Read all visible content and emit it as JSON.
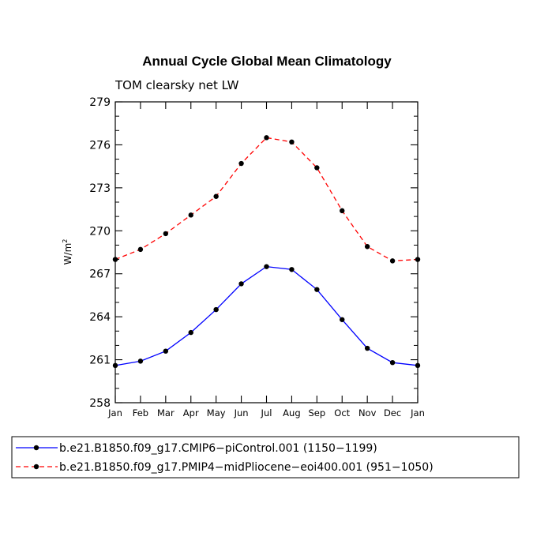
{
  "chart_data": {
    "type": "line",
    "title": "Annual Cycle Global Mean Climatology",
    "subtitle": "TOM clearsky net LW",
    "xlabel": "",
    "ylabel": "W/m",
    "ylabel_superscript": "2",
    "categories": [
      "Jan",
      "Feb",
      "Mar",
      "Apr",
      "May",
      "Jun",
      "Jul",
      "Aug",
      "Sep",
      "Oct",
      "Nov",
      "Dec",
      "Jan"
    ],
    "yticks": [
      258,
      261,
      264,
      267,
      270,
      273,
      276,
      279
    ],
    "ylim": [
      258,
      279
    ],
    "series": [
      {
        "name": "b.e21.B1850.f09_g17.CMIP6−piControl.001 (1150−1199)",
        "color": "#0000ff",
        "dash": "solid",
        "values": [
          260.6,
          260.9,
          261.6,
          262.9,
          264.5,
          266.3,
          267.5,
          267.3,
          265.9,
          263.8,
          261.8,
          260.8,
          260.6
        ]
      },
      {
        "name": "b.e21.B1850.f09_g17.PMIP4−midPliocene−eoi400.001 (951−1050)",
        "color": "#ff0000",
        "dash": "dashed",
        "values": [
          268.0,
          268.7,
          269.8,
          271.1,
          272.4,
          274.7,
          276.5,
          276.2,
          274.4,
          271.4,
          268.9,
          267.9,
          268.0
        ]
      }
    ]
  }
}
